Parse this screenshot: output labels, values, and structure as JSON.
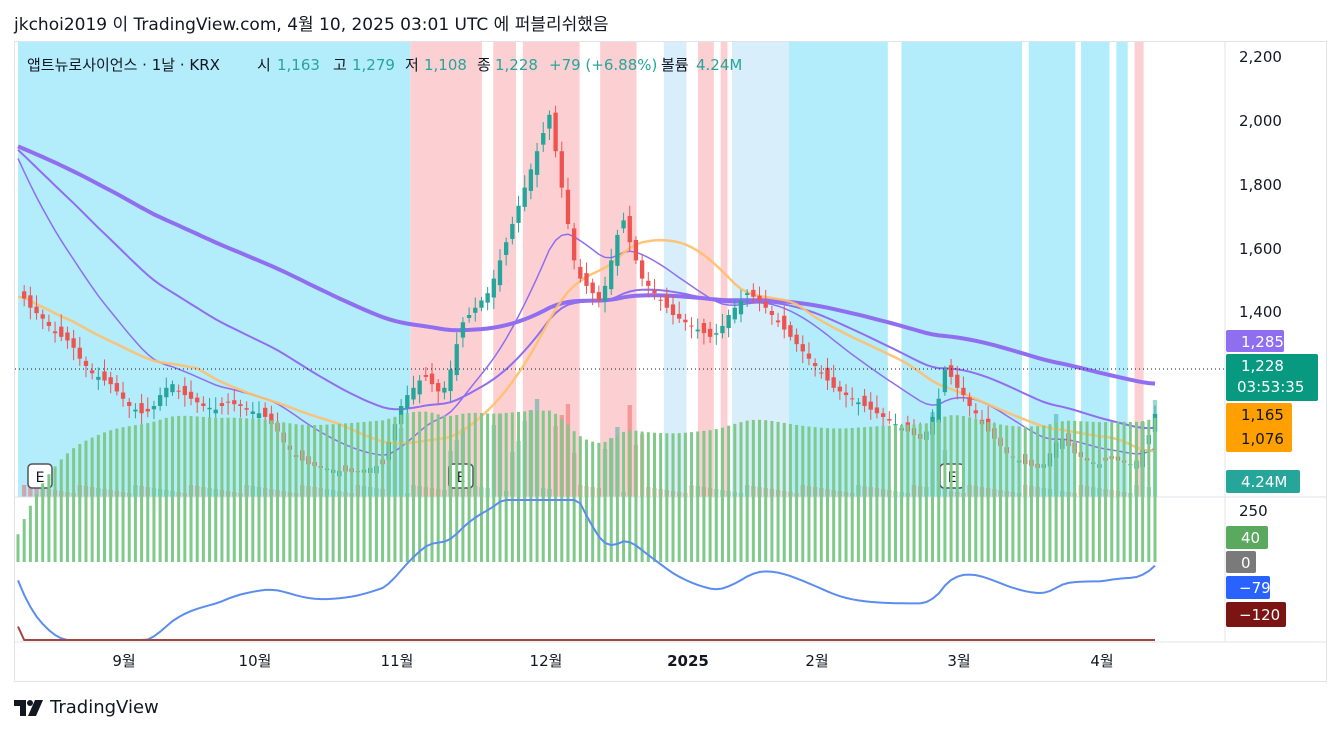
{
  "header": {
    "published": "jkchoi2019 이 TradingView.com, 4월 10, 2025 03:01 UTC 에 퍼블리쉬했음"
  },
  "legend": {
    "symbol": "앱트뉴로사이언스 · 1날 · KRX",
    "open_label": "시",
    "open": "1,163",
    "high_label": "고",
    "high": "1,279",
    "low_label": "저",
    "low": "1,108",
    "close_label": "종",
    "close": "1,228",
    "change": "+79 (+6.88%)",
    "volume_label": "볼륨",
    "volume": "4.24M"
  },
  "price_axis": {
    "ticks": [
      "2,200",
      "2,000",
      "1,800",
      "1,600",
      "1,400"
    ]
  },
  "price_badges": {
    "ema_long": "1,285",
    "last_price": "1,228",
    "countdown": "03:53:35",
    "ma_a": "1,165",
    "ma_b": "1,076",
    "volume": "4.24M"
  },
  "macd_axis": {
    "top": "250"
  },
  "macd_badges": {
    "hist": "40",
    "zero": "0",
    "macd": "−79",
    "signal": "−120"
  },
  "time_axis": [
    "9월",
    "10월",
    "11월",
    "12월",
    "2025",
    "2월",
    "3월",
    "4월"
  ],
  "earnings_marker": "E",
  "brand": {
    "name": "TradingView",
    "logo": "tradingview-logo-icon"
  },
  "colors": {
    "up": "#26a69a",
    "down": "#ef5350",
    "ema": "#8f6ef0",
    "ma_gold": "#ffbf6b",
    "ma_red": "#f23645",
    "bg_cyan": "#b3ecfb",
    "bg_pink": "#fcd0d3",
    "bg_light": "#d8eefb",
    "macd_line": "#5b8def",
    "signal_line": "#a0473f"
  },
  "chart_data": {
    "type": "candlestick",
    "title": "앱트뉴로사이언스 · 1날 · KRX",
    "x_labels": [
      "9월",
      "10월",
      "11월",
      "12월",
      "2025",
      "2월",
      "3월",
      "4월"
    ],
    "ylim": [
      1000,
      2250
    ],
    "last": {
      "open": 1163,
      "high": 1279,
      "low": 1108,
      "close": 1228,
      "change": 79,
      "change_pct": 6.88,
      "volume": "4.24M"
    },
    "candles_note": "approximate OHLC read from the chart; close path (start→end)",
    "closes": [
      1550,
      1545,
      1520,
      1505,
      1490,
      1470,
      1450,
      1440,
      1430,
      1410,
      1380,
      1360,
      1340,
      1330,
      1320,
      1310,
      1290,
      1270,
      1250,
      1240,
      1230,
      1235,
      1250,
      1280,
      1300,
      1310,
      1290,
      1280,
      1270,
      1260,
      1250,
      1245,
      1240,
      1250,
      1260,
      1255,
      1250,
      1240,
      1235,
      1230,
      1220,
      1200,
      1180,
      1150,
      1130,
      1110,
      1100,
      1090,
      1085,
      1080,
      1078,
      1075,
      1072,
      1070,
      1068,
      1070,
      1075,
      1080,
      1085,
      1090,
      1150,
      1200,
      1250,
      1280,
      1300,
      1320,
      1330,
      1310,
      1290,
      1300,
      1350,
      1420,
      1480,
      1500,
      1520,
      1540,
      1560,
      1600,
      1650,
      1700,
      1750,
      1800,
      1850,
      1900,
      1950,
      2000,
      2050,
      1950,
      1850,
      1750,
      1650,
      1600,
      1580,
      1560,
      1540,
      1580,
      1650,
      1720,
      1760,
      1700,
      1650,
      1600,
      1580,
      1560,
      1540,
      1520,
      1500,
      1490,
      1480,
      1470,
      1460,
      1450,
      1440,
      1450,
      1470,
      1500,
      1520,
      1540,
      1560,
      1550,
      1540,
      1520,
      1500,
      1480,
      1460,
      1440,
      1420,
      1400,
      1380,
      1360,
      1340,
      1320,
      1300,
      1290,
      1280,
      1270,
      1260,
      1250,
      1240,
      1230,
      1220,
      1210,
      1200,
      1190,
      1180,
      1170,
      1160,
      1180,
      1220,
      1270,
      1350,
      1330,
      1300,
      1280,
      1250,
      1230,
      1200,
      1180,
      1160,
      1140,
      1120,
      1110,
      1100,
      1090,
      1085,
      1080,
      1090,
      1120,
      1150,
      1160,
      1140,
      1120,
      1110,
      1100,
      1095,
      1090,
      1100,
      1105,
      1100,
      1095,
      1090,
      1100,
      1130,
      1170,
      1228
    ],
    "series": [
      {
        "name": "EMA long",
        "last": 1285
      },
      {
        "name": "MA",
        "last": 1165
      },
      {
        "name": "MA",
        "last": 1076
      }
    ],
    "volume_last": "4.24M",
    "macd": {
      "macd": -79,
      "signal": -120,
      "histogram": 40,
      "axis_top": 250
    }
  }
}
